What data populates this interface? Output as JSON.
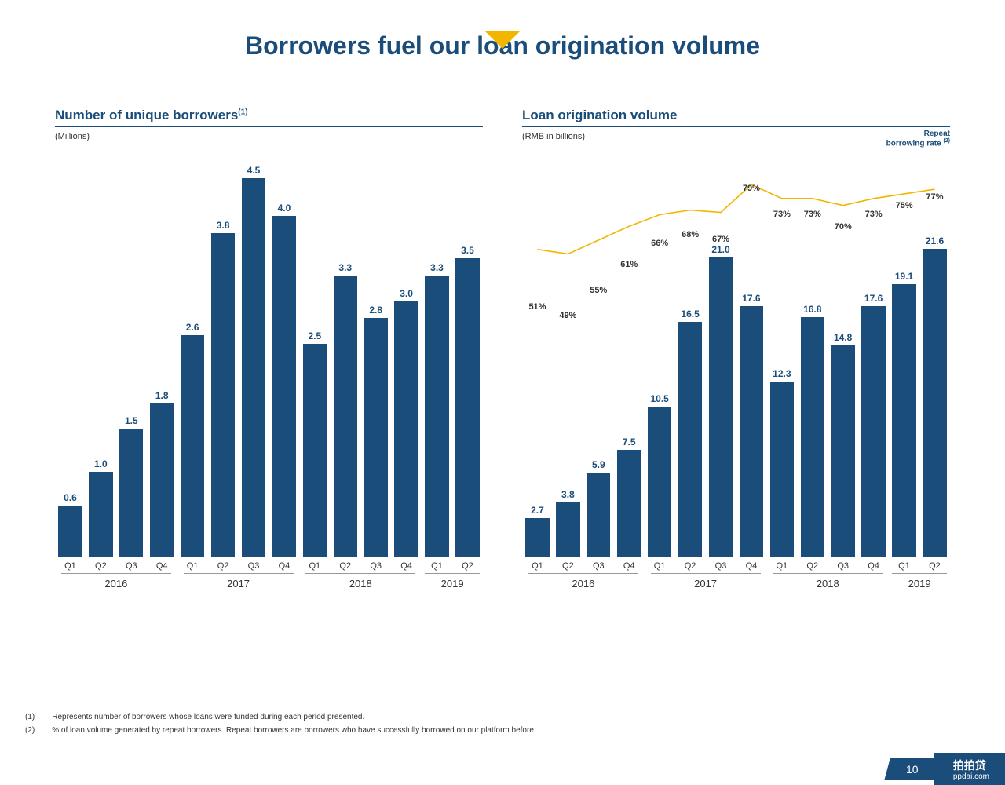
{
  "title": "Borrowers fuel our loan origination volume",
  "colors": {
    "primary": "#1a4d7a",
    "accent": "#f2b600",
    "text": "#333333"
  },
  "chart_left": {
    "title": "Number of unique borrowers",
    "title_sup": "(1)",
    "unit": "(Millions)",
    "type": "bar",
    "ymax": 4.6,
    "value_label_fontsize": 12,
    "quarters": [
      "Q1",
      "Q2",
      "Q3",
      "Q4",
      "Q1",
      "Q2",
      "Q3",
      "Q4",
      "Q1",
      "Q2",
      "Q3",
      "Q4",
      "Q1",
      "Q2"
    ],
    "values": [
      0.6,
      1.0,
      1.5,
      1.8,
      2.6,
      3.8,
      4.5,
      4.0,
      2.5,
      3.3,
      2.8,
      3.0,
      3.3,
      3.5
    ],
    "year_groups": [
      {
        "label": "2016",
        "span": 4
      },
      {
        "label": "2017",
        "span": 4
      },
      {
        "label": "2018",
        "span": 4
      },
      {
        "label": "2019",
        "span": 2
      }
    ]
  },
  "chart_right": {
    "title": "Loan origination volume",
    "unit": "(RMB in billions)",
    "right_label": "Repeat<br>borrowing rate <sup>(2)</sup>",
    "type": "bar+line",
    "ymax": 27.5,
    "line_top_pct": 100,
    "line_bottom_pct": 40,
    "quarters": [
      "Q1",
      "Q2",
      "Q3",
      "Q4",
      "Q1",
      "Q2",
      "Q3",
      "Q4",
      "Q1",
      "Q2",
      "Q3",
      "Q4",
      "Q1",
      "Q2"
    ],
    "values": [
      2.7,
      3.8,
      5.9,
      7.5,
      10.5,
      16.5,
      21.0,
      17.6,
      12.3,
      16.8,
      14.8,
      17.6,
      19.1,
      21.6
    ],
    "line_labels": [
      "51%",
      "49%",
      "55%",
      "61%",
      "66%",
      "68%",
      "67%",
      "79%",
      "73%",
      "73%",
      "70%",
      "73%",
      "75%",
      "77%"
    ],
    "line_values": [
      51,
      49,
      55,
      61,
      66,
      68,
      67,
      79,
      73,
      73,
      70,
      73,
      75,
      77
    ],
    "year_groups": [
      {
        "label": "2016",
        "span": 4
      },
      {
        "label": "2017",
        "span": 4
      },
      {
        "label": "2018",
        "span": 4
      },
      {
        "label": "2019",
        "span": 2
      }
    ]
  },
  "footnotes": [
    {
      "num": "(1)",
      "text": "Represents number of borrowers whose loans were funded during each period presented."
    },
    {
      "num": "(2)",
      "text": "% of loan volume generated by repeat borrowers. Repeat borrowers are borrowers who have successfully borrowed on our platform before."
    }
  ],
  "page_number": "10",
  "logo_text": "拍拍贷",
  "logo_sub": "ppdai.com"
}
